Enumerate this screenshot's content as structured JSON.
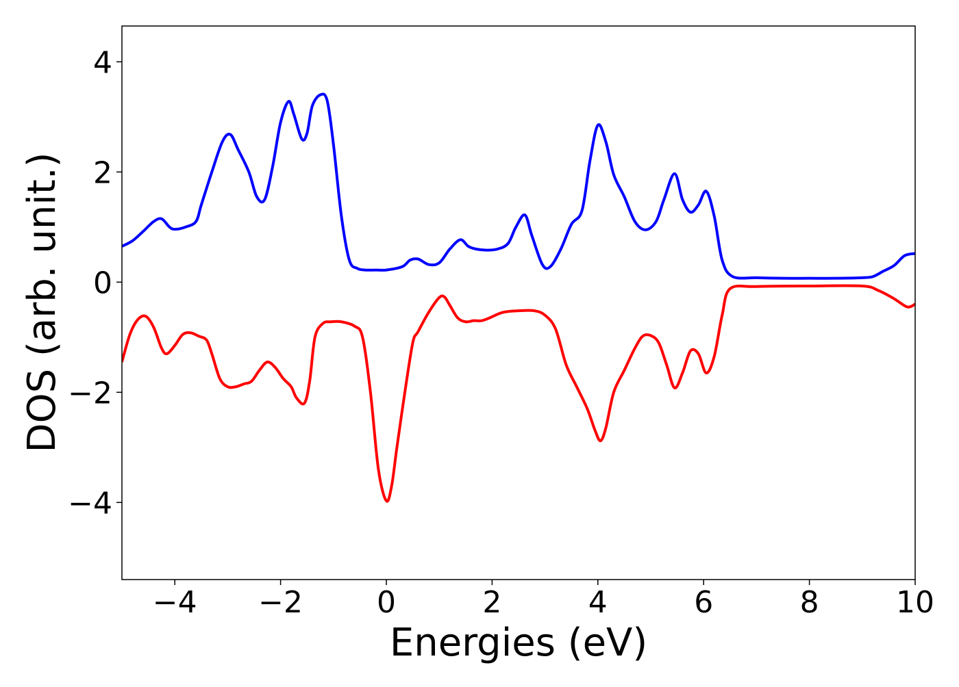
{
  "chart_data": {
    "type": "line",
    "title": "",
    "xlabel": "Energies (eV)",
    "ylabel": "DOS (arb. unit.)",
    "xlim": [
      -5,
      10
    ],
    "ylim": [
      -5.4,
      4.65
    ],
    "xticks": [
      -4,
      -2,
      0,
      2,
      4,
      6,
      8,
      10
    ],
    "yticks": [
      -4,
      -2,
      0,
      2,
      4
    ],
    "xtick_labels": [
      "−4",
      "−2",
      "0",
      "2",
      "4",
      "6",
      "8",
      "10"
    ],
    "ytick_labels": [
      "−4",
      "−2",
      "0",
      "2",
      "4"
    ],
    "grid": false,
    "legend": "none",
    "series": [
      {
        "color": "#0000ff",
        "x": [
          -5.0,
          -4.8,
          -4.6,
          -4.4,
          -4.25,
          -4.1,
          -4.0,
          -3.8,
          -3.6,
          -3.5,
          -3.3,
          -3.1,
          -2.95,
          -2.8,
          -2.6,
          -2.45,
          -2.3,
          -2.15,
          -2.0,
          -1.85,
          -1.75,
          -1.6,
          -1.5,
          -1.4,
          -1.25,
          -1.12,
          -1.0,
          -0.85,
          -0.7,
          -0.55,
          -0.4,
          -0.2,
          0.0,
          0.3,
          0.45,
          0.6,
          0.8,
          1.0,
          1.2,
          1.4,
          1.55,
          1.7,
          1.9,
          2.1,
          2.3,
          2.45,
          2.62,
          2.75,
          2.95,
          3.1,
          3.3,
          3.5,
          3.7,
          3.85,
          4.0,
          4.15,
          4.3,
          4.5,
          4.7,
          4.9,
          5.1,
          5.25,
          5.45,
          5.6,
          5.75,
          5.9,
          6.05,
          6.2,
          6.35,
          6.55,
          7.0,
          7.5,
          8.0,
          8.5,
          9.0,
          9.2,
          9.4,
          9.6,
          9.8,
          10.0
        ],
        "y": [
          0.65,
          0.75,
          0.92,
          1.1,
          1.15,
          1.0,
          0.96,
          1.0,
          1.1,
          1.4,
          2.0,
          2.55,
          2.68,
          2.4,
          2.0,
          1.55,
          1.5,
          2.1,
          2.9,
          3.28,
          3.05,
          2.6,
          2.7,
          3.2,
          3.4,
          3.3,
          2.5,
          1.2,
          0.4,
          0.25,
          0.22,
          0.22,
          0.22,
          0.28,
          0.4,
          0.42,
          0.32,
          0.35,
          0.6,
          0.77,
          0.65,
          0.6,
          0.58,
          0.6,
          0.7,
          1.0,
          1.22,
          0.85,
          0.32,
          0.28,
          0.6,
          1.05,
          1.3,
          2.2,
          2.85,
          2.55,
          1.95,
          1.55,
          1.1,
          0.95,
          1.1,
          1.5,
          1.97,
          1.5,
          1.27,
          1.4,
          1.65,
          1.2,
          0.4,
          0.1,
          0.08,
          0.07,
          0.07,
          0.07,
          0.08,
          0.1,
          0.2,
          0.3,
          0.48,
          0.52
        ]
      },
      {
        "color": "#ff0000",
        "x": [
          -5.0,
          -4.85,
          -4.7,
          -4.55,
          -4.4,
          -4.25,
          -4.15,
          -4.0,
          -3.85,
          -3.7,
          -3.55,
          -3.4,
          -3.3,
          -3.15,
          -3.0,
          -2.85,
          -2.7,
          -2.55,
          -2.4,
          -2.25,
          -2.1,
          -1.95,
          -1.8,
          -1.7,
          -1.55,
          -1.45,
          -1.35,
          -1.2,
          -1.05,
          -0.85,
          -0.6,
          -0.45,
          -0.3,
          -0.15,
          0.0,
          0.1,
          0.2,
          0.35,
          0.5,
          0.6,
          0.8,
          1.0,
          1.1,
          1.2,
          1.35,
          1.5,
          1.65,
          1.8,
          1.95,
          2.2,
          2.5,
          2.8,
          3.0,
          3.2,
          3.4,
          3.6,
          3.8,
          3.95,
          4.05,
          4.15,
          4.3,
          4.5,
          4.7,
          4.85,
          5.0,
          5.15,
          5.3,
          5.45,
          5.6,
          5.75,
          5.9,
          6.05,
          6.2,
          6.35,
          6.5,
          7.0,
          8.0,
          9.0,
          9.3,
          9.6,
          9.85,
          10.0
        ],
        "y": [
          -1.45,
          -0.95,
          -0.68,
          -0.62,
          -0.82,
          -1.2,
          -1.3,
          -1.15,
          -0.95,
          -0.92,
          -0.98,
          -1.05,
          -1.3,
          -1.75,
          -1.9,
          -1.9,
          -1.85,
          -1.8,
          -1.6,
          -1.45,
          -1.55,
          -1.75,
          -1.9,
          -2.1,
          -2.2,
          -1.8,
          -1.0,
          -0.75,
          -0.72,
          -0.72,
          -0.8,
          -1.0,
          -2.0,
          -3.4,
          -3.97,
          -3.7,
          -3.0,
          -2.0,
          -1.1,
          -0.9,
          -0.55,
          -0.28,
          -0.27,
          -0.42,
          -0.65,
          -0.72,
          -0.7,
          -0.7,
          -0.65,
          -0.55,
          -0.52,
          -0.52,
          -0.6,
          -0.85,
          -1.5,
          -1.9,
          -2.3,
          -2.7,
          -2.88,
          -2.65,
          -2.0,
          -1.6,
          -1.2,
          -0.98,
          -0.97,
          -1.1,
          -1.5,
          -1.92,
          -1.65,
          -1.25,
          -1.3,
          -1.65,
          -1.35,
          -0.6,
          -0.12,
          -0.08,
          -0.07,
          -0.07,
          -0.15,
          -0.3,
          -0.45,
          -0.4
        ]
      }
    ]
  }
}
